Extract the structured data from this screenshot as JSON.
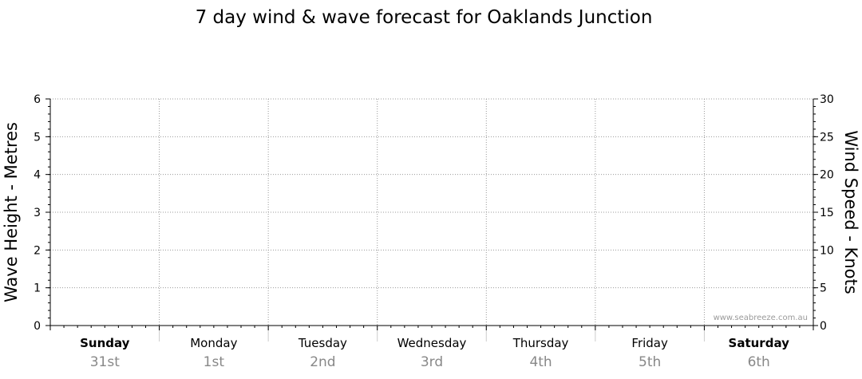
{
  "chart_data": {
    "type": "line",
    "title": "7 day wind & wave forecast for Oaklands Junction",
    "ylabel_left": "Wave Height - Metres",
    "ylabel_right": "Wind Speed - Knots",
    "ylim_left": [
      0,
      6
    ],
    "ylim_right": [
      0,
      30
    ],
    "yticks_left": [
      "0",
      "1",
      "2",
      "3",
      "4",
      "5",
      "6"
    ],
    "yticks_right": [
      "0",
      "5",
      "10",
      "15",
      "20",
      "25",
      "30"
    ],
    "grid": true,
    "days": [
      {
        "name": "Sunday",
        "date": "31st",
        "bold": true
      },
      {
        "name": "Monday",
        "date": "1st",
        "bold": false
      },
      {
        "name": "Tuesday",
        "date": "2nd",
        "bold": false
      },
      {
        "name": "Wednesday",
        "date": "3rd",
        "bold": false
      },
      {
        "name": "Thursday",
        "date": "4th",
        "bold": false
      },
      {
        "name": "Friday",
        "date": "5th",
        "bold": false
      },
      {
        "name": "Saturday",
        "date": "6th",
        "bold": true
      }
    ],
    "series": [],
    "watermark": "www.seabreeze.com.au",
    "colors": {
      "grid": "#999999",
      "axis": "#000000",
      "date_text": "#888888",
      "watermark": "#9a9a9a"
    }
  }
}
